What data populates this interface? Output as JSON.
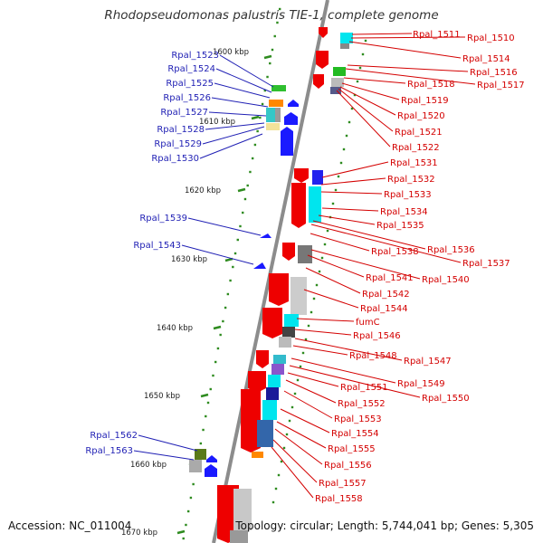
{
  "title": "Rhodopseudomonas palustris TIE-1, complete genome",
  "footer": {
    "accession": "Accession: NC_011004",
    "topology": "Topology: circular; Length: 5,744,041 bp; Genes: 5,305"
  },
  "colors": {
    "backbone": "#8c8c8c",
    "tick": "#2e8b1f",
    "left_label": "#1f1fb4",
    "right_label": "#d40000",
    "forward_gene": "#1a1aff",
    "reverse_gene": "#ee0000"
  },
  "scale_labels": [
    "1600 kbp",
    "1610 kbp",
    "1620 kbp",
    "1630 kbp",
    "1640 kbp",
    "1650 kbp",
    "1660 kbp",
    "1670 kbp"
  ],
  "left_labels": [
    "Rpal_1523",
    "Rpal_1524",
    "Rpal_1525",
    "Rpal_1526",
    "Rpal_1527",
    "Rpal_1528",
    "Rpal_1529",
    "Rpal_1530",
    "Rpal_1539",
    "Rpal_1543",
    "Rpal_1562",
    "Rpal_1563"
  ],
  "right_labels": [
    "Rpal_1511",
    "Rpal_1510",
    "Rpal_1514",
    "Rpal_1516",
    "Rpal_1517",
    "Rpal_1518",
    "Rpal_1519",
    "Rpal_1520",
    "Rpal_1521",
    "Rpal_1522",
    "Rpal_1531",
    "Rpal_1532",
    "Rpal_1533",
    "Rpal_1534",
    "Rpal_1535",
    "Rpal_1536",
    "Rpal_1537",
    "Rpal_1538",
    "Rpal_1540",
    "Rpal_1541",
    "Rpal_1542",
    "Rpal_1544",
    "fumC",
    "Rpal_1546",
    "Rpal_1547",
    "Rpal_1548",
    "Rpal_1549",
    "Rpal_1550",
    "Rpal_1551",
    "Rpal_1552",
    "Rpal_1553",
    "Rpal_1554",
    "Rpal_1555",
    "Rpal_1556",
    "Rpal_1557",
    "Rpal_1558"
  ]
}
